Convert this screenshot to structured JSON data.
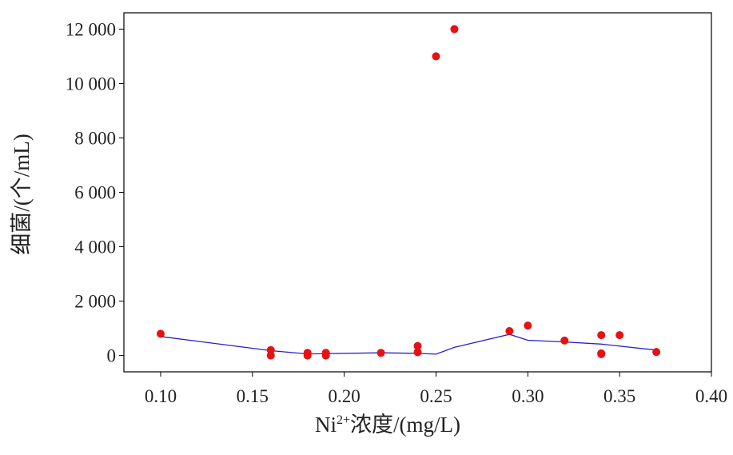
{
  "chart_data": {
    "type": "scatter",
    "xlabel_main": "Ni",
    "xlabel_sup": "2+",
    "xlabel_rest": "浓度/(mg/L)",
    "ylabel": "细菌/(个/mL)",
    "xlim": [
      0.08,
      0.4
    ],
    "ylim": [
      -600,
      12600
    ],
    "x_ticks": [
      0.1,
      0.15,
      0.2,
      0.25,
      0.3,
      0.35,
      0.4
    ],
    "x_tick_labels": [
      "0.10",
      "0.15",
      "0.20",
      "0.25",
      "0.30",
      "0.35",
      "0.40"
    ],
    "y_ticks": [
      0,
      2000,
      4000,
      6000,
      8000,
      10000,
      12000
    ],
    "y_tick_labels": [
      "0",
      "2 000",
      "4 000",
      "6 000",
      "8 000",
      "10 000",
      "12 000"
    ],
    "grid": false,
    "series": [
      {
        "type": "scatter",
        "color": "#e81010",
        "points": [
          [
            0.1,
            800
          ],
          [
            0.16,
            200
          ],
          [
            0.16,
            0
          ],
          [
            0.18,
            100
          ],
          [
            0.18,
            0
          ],
          [
            0.19,
            100
          ],
          [
            0.19,
            0
          ],
          [
            0.22,
            100
          ],
          [
            0.24,
            350
          ],
          [
            0.24,
            120
          ],
          [
            0.25,
            11000
          ],
          [
            0.26,
            12000
          ],
          [
            0.29,
            900
          ],
          [
            0.3,
            1100
          ],
          [
            0.32,
            550
          ],
          [
            0.34,
            750
          ],
          [
            0.34,
            80
          ],
          [
            0.34,
            50
          ],
          [
            0.35,
            750
          ],
          [
            0.37,
            130
          ]
        ]
      },
      {
        "type": "line",
        "color": "#2222cc",
        "points": [
          [
            0.1,
            700
          ],
          [
            0.16,
            180
          ],
          [
            0.18,
            60
          ],
          [
            0.22,
            100
          ],
          [
            0.24,
            80
          ],
          [
            0.25,
            50
          ],
          [
            0.26,
            300
          ],
          [
            0.29,
            780
          ],
          [
            0.3,
            560
          ],
          [
            0.32,
            500
          ],
          [
            0.34,
            420
          ],
          [
            0.37,
            200
          ]
        ]
      }
    ]
  }
}
